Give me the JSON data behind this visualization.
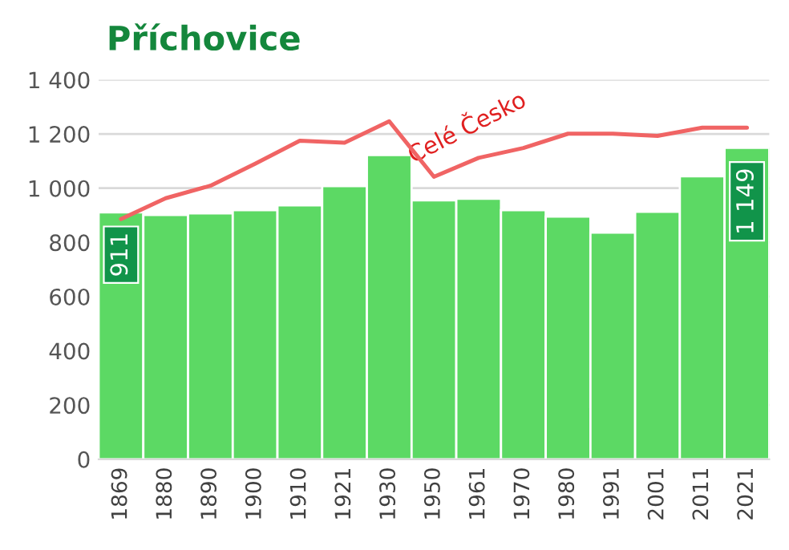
{
  "chart_data": {
    "type": "bar",
    "title": "Příchovice",
    "categories": [
      "1869",
      "1880",
      "1890",
      "1900",
      "1910",
      "1921",
      "1930",
      "1950",
      "1961",
      "1970",
      "1980",
      "1991",
      "2001",
      "2011",
      "2021"
    ],
    "series": [
      {
        "color": "#5cd964",
        "values": [
          911,
          901,
          907,
          919,
          937,
          1008,
          1122,
          955,
          961,
          919,
          895,
          836,
          913,
          1044,
          1149
        ],
        "value_labels": [
          "911",
          null,
          null,
          null,
          null,
          null,
          null,
          null,
          null,
          null,
          null,
          null,
          null,
          null,
          "1 149"
        ]
      },
      {
        "type": "line",
        "name": "Celé Česko",
        "color": "#f06464",
        "values": [
          886,
          963,
          1009,
          1090,
          1175,
          1168,
          1247,
          1042,
          1112,
          1148,
          1201,
          1201,
          1193,
          1223,
          1223
        ]
      }
    ],
    "ylim": [
      0,
      1400
    ],
    "yticks": [
      0,
      200,
      400,
      600,
      800,
      {
        "value": 1000,
        "label": "1 000"
      },
      {
        "value": 1200,
        "label": "1 200"
      },
      {
        "value": 1400,
        "label": "1 400"
      }
    ],
    "grid": "y",
    "legend": false
  }
}
